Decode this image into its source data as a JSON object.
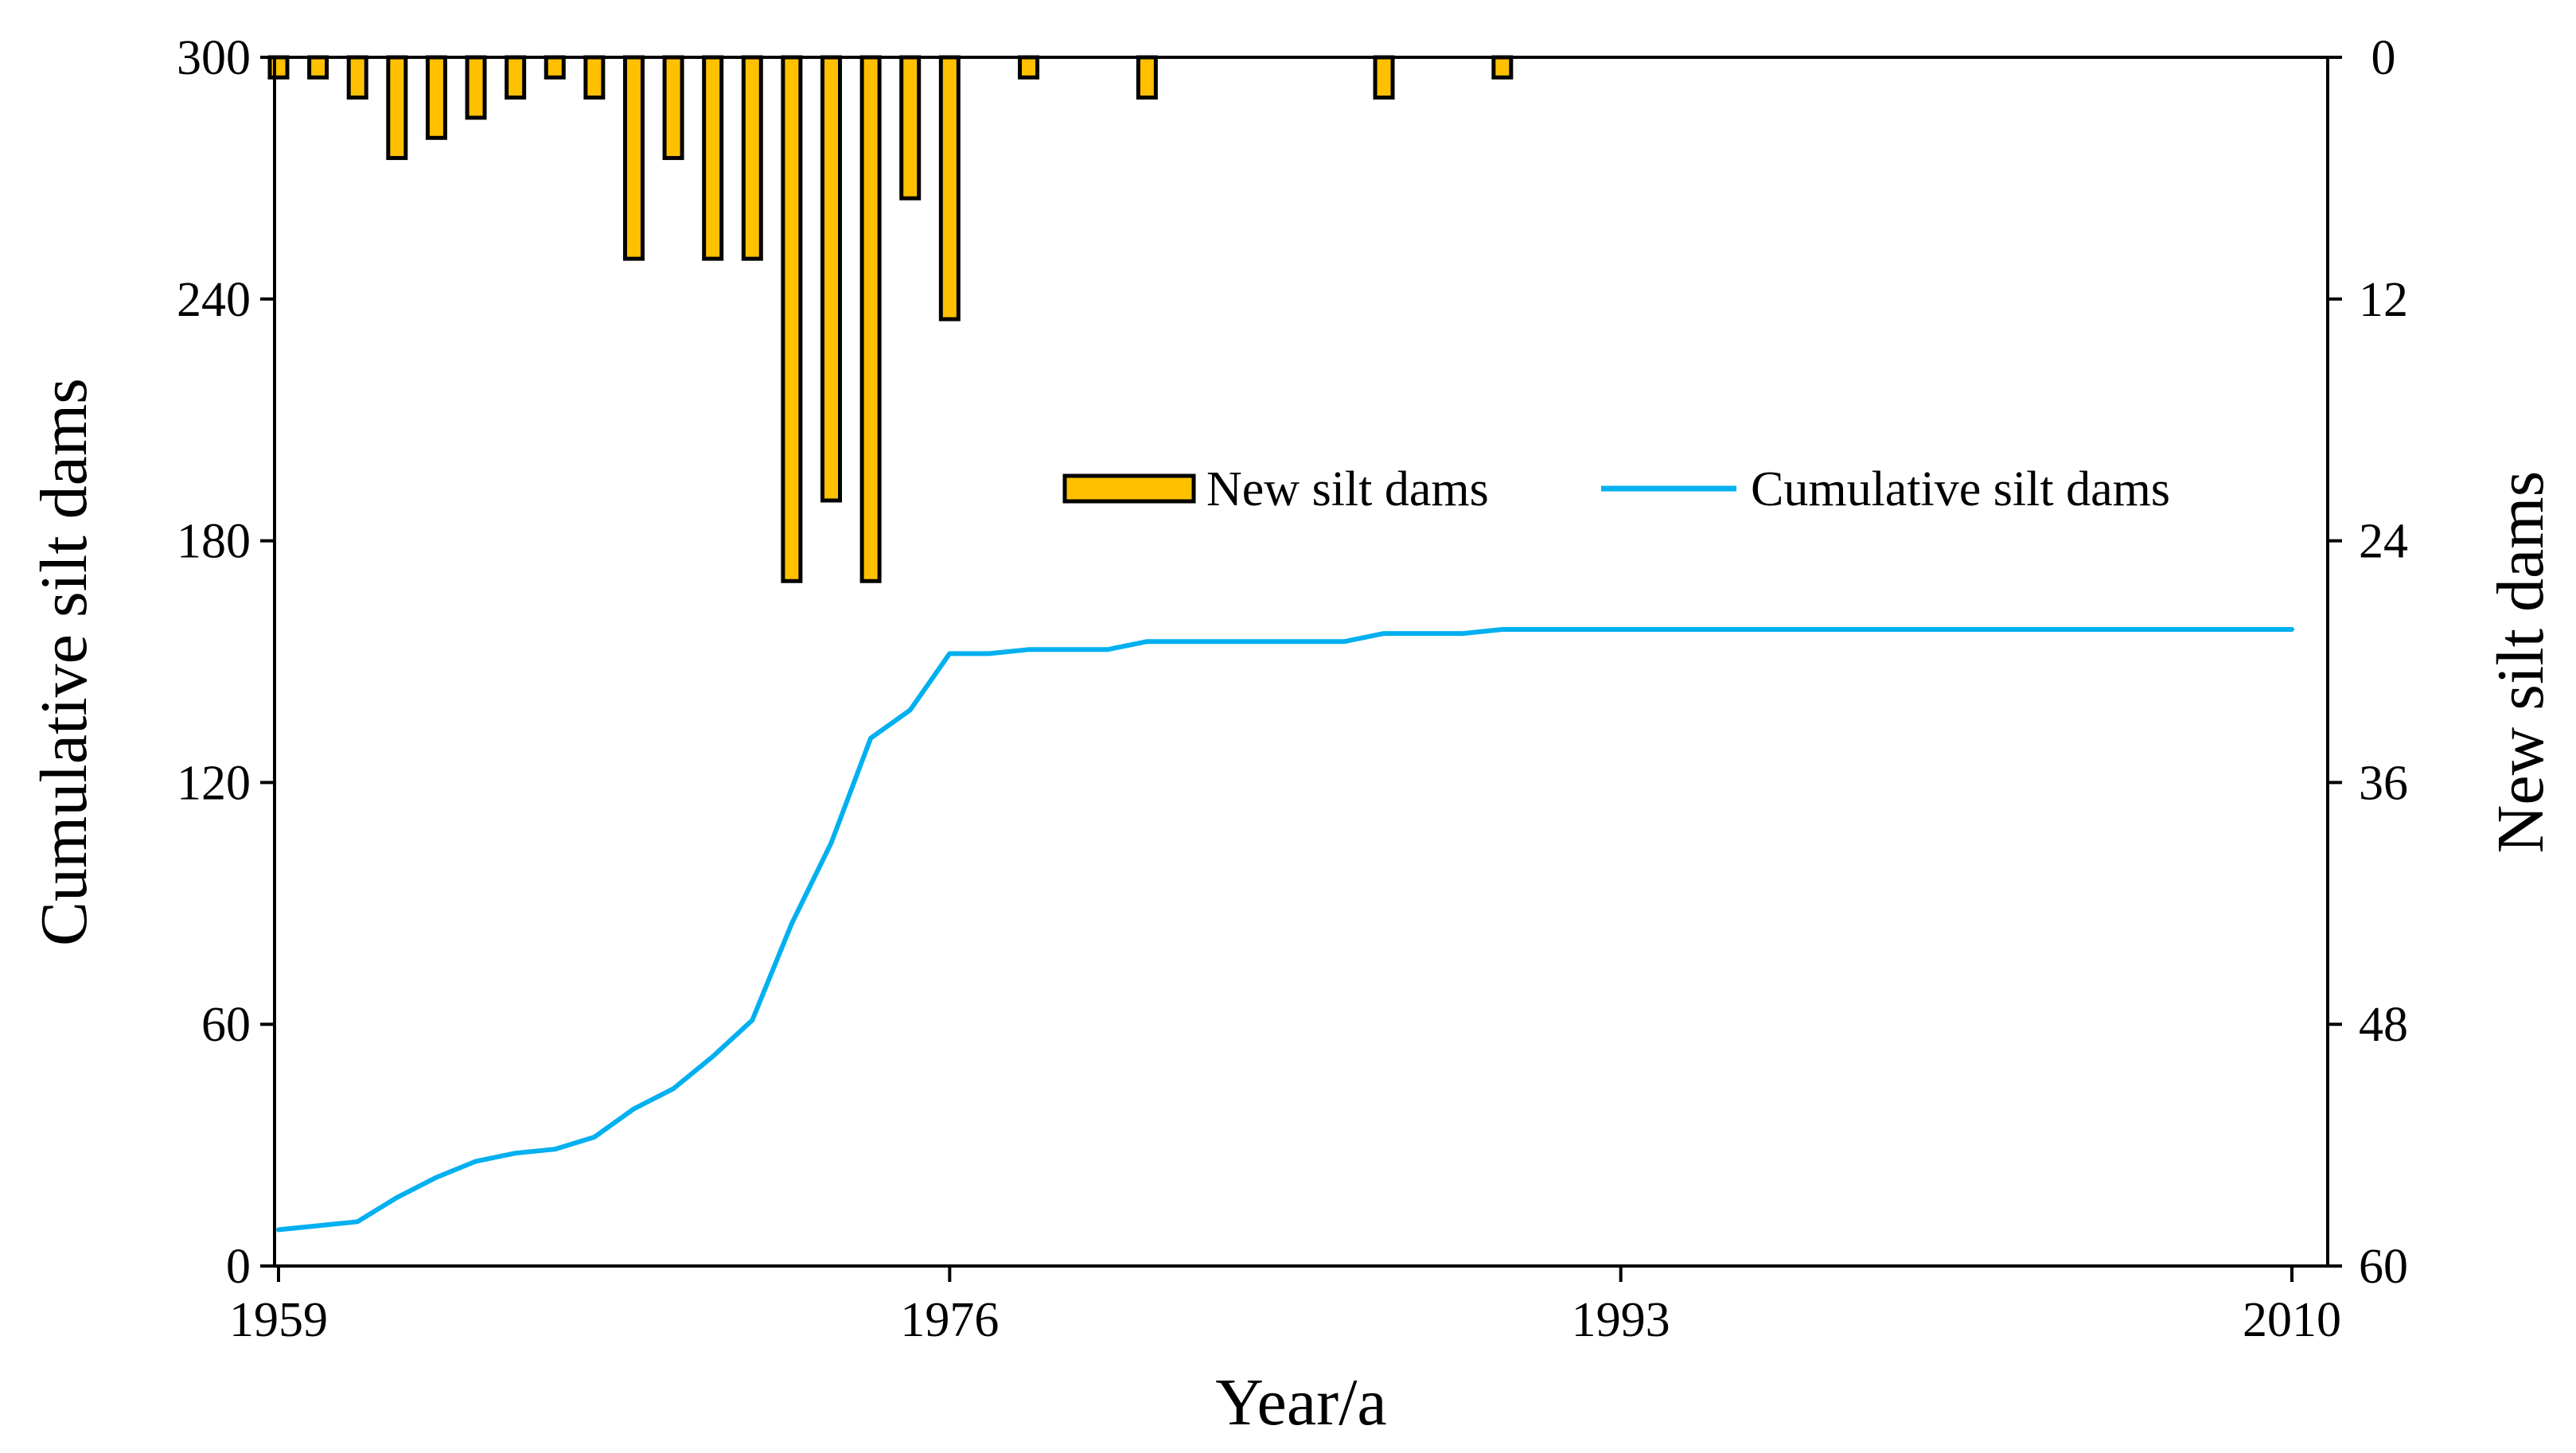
{
  "chart_data": {
    "type": "bar+line",
    "title": "",
    "xlabel": "Year/a",
    "ylabel_left": "Cumulative silt dams",
    "ylabel_right": "New silt dams",
    "x_ticks": [
      "1959",
      "1976",
      "1993",
      "2010"
    ],
    "xlim": [
      1959,
      2010
    ],
    "ylim_left": [
      0,
      300
    ],
    "yticks_left": [
      "0",
      "60",
      "120",
      "180",
      "240",
      "300"
    ],
    "ylim_right": [
      0,
      60
    ],
    "yticks_right": [
      "0",
      "12",
      "24",
      "36",
      "48",
      "60"
    ],
    "right_axis_inverted": true,
    "grid": false,
    "legend": {
      "position": "center-right",
      "entries": [
        {
          "name": "New silt dams",
          "kind": "bar",
          "color": "#FFC000"
        },
        {
          "name": "Cumulative silt dams",
          "kind": "line",
          "color": "#00B0F0"
        }
      ]
    },
    "series": [
      {
        "name": "New silt dams",
        "axis": "right",
        "kind": "bar",
        "color": "#FFC000",
        "edge_color": "#000000",
        "x": [
          1959,
          1960,
          1961,
          1962,
          1963,
          1964,
          1965,
          1966,
          1967,
          1968,
          1969,
          1970,
          1971,
          1972,
          1973,
          1974,
          1975,
          1976,
          1977,
          1978,
          1979,
          1980,
          1981,
          1982,
          1983,
          1984,
          1985,
          1986,
          1987,
          1988,
          1989,
          1990
        ],
        "values": [
          1,
          1,
          2,
          5,
          4,
          3,
          2,
          1,
          2,
          10,
          5,
          10,
          10,
          26,
          22,
          26,
          7,
          13,
          0,
          1,
          0,
          0,
          2,
          0,
          0,
          0,
          0,
          0,
          2,
          0,
          0,
          1
        ]
      },
      {
        "name": "Cumulative silt dams",
        "axis": "left",
        "kind": "line",
        "color": "#00B0F0",
        "x": [
          1959,
          1960,
          1961,
          1962,
          1963,
          1964,
          1965,
          1966,
          1967,
          1968,
          1969,
          1970,
          1971,
          1972,
          1973,
          1974,
          1975,
          1976,
          1977,
          1978,
          1979,
          1980,
          1981,
          1982,
          1983,
          1984,
          1985,
          1986,
          1987,
          1988,
          1989,
          1990,
          2010
        ],
        "values": [
          9,
          10,
          11,
          17,
          22,
          26,
          28,
          29,
          32,
          39,
          44,
          52,
          61,
          85,
          105,
          131,
          138,
          152,
          152,
          153,
          153,
          153,
          155,
          155,
          155,
          155,
          155,
          155,
          157,
          157,
          157,
          158,
          158
        ]
      }
    ]
  }
}
